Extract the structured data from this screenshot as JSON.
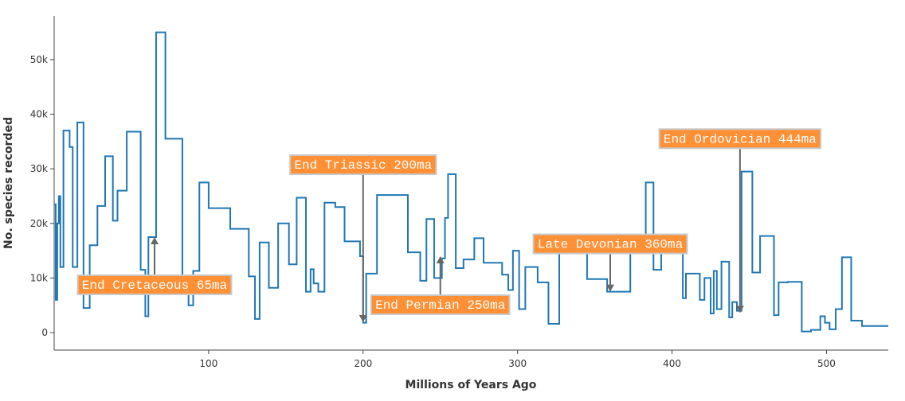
{
  "chart_data": {
    "type": "line",
    "line_shape": "hv",
    "x_label": "Millions of Years Ago",
    "y_label": "No. species recorded",
    "xlim": [
      0,
      540
    ],
    "xticks": [
      100,
      200,
      300,
      400,
      500
    ],
    "ylim": [
      -3200,
      58000
    ],
    "yticks": [
      0,
      {
        "value": 10000,
        "label": "10k"
      },
      {
        "value": 20000,
        "label": "20k"
      },
      {
        "value": 30000,
        "label": "30k"
      },
      {
        "value": 40000,
        "label": "40k"
      },
      {
        "value": 50000,
        "label": "50k"
      }
    ],
    "x": [
      0,
      1,
      2,
      3,
      4,
      6,
      10,
      12,
      15,
      19,
      23,
      28,
      33,
      38,
      41,
      47,
      56,
      59,
      61,
      66,
      72,
      83,
      87,
      90,
      94,
      100,
      114,
      126,
      130,
      133,
      139,
      145,
      152,
      157,
      163,
      166,
      168,
      171,
      175,
      182,
      188,
      198,
      200,
      202,
      209,
      229,
      237,
      241,
      246,
      251,
      253,
      255,
      260,
      265,
      272,
      278,
      290,
      294,
      297,
      301,
      305,
      313,
      320,
      327,
      345,
      358,
      373,
      383,
      388,
      393,
      407,
      409,
      418,
      421,
      425,
      427,
      429,
      432,
      437,
      439,
      442,
      445,
      452,
      457,
      466,
      469,
      475,
      484,
      490,
      496,
      499,
      502,
      506,
      510,
      516,
      523,
      540
    ],
    "series": [
      {
        "name": "species",
        "color": "#1f77b4",
        "values": [
          23500,
          6000,
          20000,
          25000,
          12000,
          37000,
          34000,
          12000,
          38500,
          4500,
          16000,
          23200,
          32300,
          20500,
          26000,
          36800,
          11500,
          3000,
          17500,
          55000,
          35500,
          7500,
          5000,
          11300,
          27500,
          22800,
          19000,
          10300,
          2500,
          16500,
          8200,
          20000,
          12500,
          24700,
          7500,
          11600,
          9000,
          7500,
          23800,
          23000,
          16700,
          14000,
          1800,
          10800,
          25200,
          14700,
          9500,
          20800,
          10000,
          13600,
          21000,
          29000,
          11800,
          13400,
          17300,
          12800,
          10600,
          7800,
          15000,
          4300,
          12000,
          9200,
          1600,
          17000,
          9800,
          7500,
          17500,
          27500,
          11500,
          14700,
          6300,
          10800,
          6000,
          10000,
          3500,
          11300,
          4300,
          13000,
          2800,
          5600,
          4000,
          29500,
          11000,
          17700,
          3200,
          9200,
          9300,
          200,
          500,
          3000,
          1800,
          600,
          4300,
          13800,
          2200,
          1200,
          1200
        ]
      }
    ],
    "annotations": [
      {
        "text": "End Cretaceous 65ma",
        "x": 65,
        "y": 17500
      },
      {
        "text": "End Triassic 200ma",
        "x": 200,
        "y": 1900
      },
      {
        "text": "End Permian 250ma",
        "x": 250,
        "y": 14000
      },
      {
        "text": "Late Devonian 360ma",
        "x": 360,
        "y": 7500
      },
      {
        "text": "End Ordovician 444ma",
        "x": 444,
        "y": 3600
      }
    ],
    "annotation_color": "#ff9035"
  }
}
